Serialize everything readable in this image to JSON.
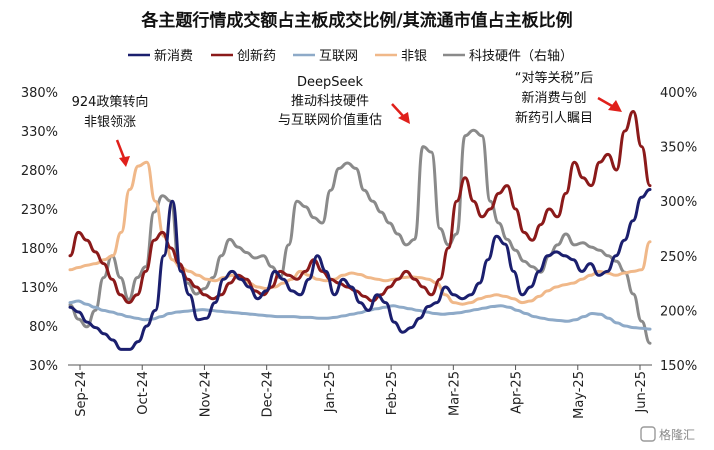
{
  "chart_data": {
    "type": "line",
    "title": "各主题行情成交额占主板成交比例/其流通市值占主板比例",
    "x_labels": [
      "Sep-24",
      "Oct-24",
      "Nov-24",
      "Dec-24",
      "Jan-25",
      "Feb-25",
      "Mar-25",
      "Apr-25",
      "May-25",
      "Jun-25"
    ],
    "y_left": {
      "ticks": [
        "30%",
        "80%",
        "130%",
        "180%",
        "230%",
        "280%",
        "330%",
        "380%"
      ],
      "range": [
        30,
        380
      ]
    },
    "y_right": {
      "ticks": [
        "150%",
        "200%",
        "250%",
        "300%",
        "350%",
        "400%"
      ],
      "range": [
        150,
        400
      ]
    },
    "series": [
      {
        "name": "新消费",
        "color": "#1b1f6e",
        "axis": "left",
        "values": [
          104,
          98,
          85,
          78,
          70,
          62,
          50,
          50,
          60,
          80,
          100,
          170,
          240,
          150,
          120,
          88,
          90,
          110,
          140,
          150,
          140,
          130,
          115,
          125,
          150,
          140,
          125,
          120,
          140,
          170,
          150,
          120,
          140,
          130,
          110,
          100,
          120,
          110,
          85,
          72,
          78,
          90,
          105,
          110,
          130,
          120,
          115,
          120,
          135,
          165,
          195,
          185,
          150,
          120,
          130,
          150,
          170,
          175,
          170,
          165,
          150,
          160,
          145,
          150,
          170,
          190,
          215,
          245,
          255
        ]
      },
      {
        "name": "创新药",
        "color": "#8b1a1a",
        "axis": "left",
        "values": [
          170,
          200,
          190,
          175,
          160,
          140,
          120,
          110,
          120,
          150,
          190,
          200,
          180,
          160,
          140,
          130,
          120,
          115,
          120,
          135,
          145,
          140,
          125,
          120,
          130,
          150,
          145,
          140,
          150,
          165,
          150,
          140,
          135,
          130,
          125,
          118,
          112,
          120,
          130,
          140,
          150,
          140,
          130,
          120,
          140,
          180,
          240,
          270,
          240,
          220,
          230,
          250,
          260,
          230,
          200,
          190,
          210,
          230,
          220,
          250,
          290,
          270,
          260,
          290,
          300,
          280,
          330,
          355,
          310,
          260
        ]
      },
      {
        "name": "互联网",
        "color": "#8eaac8",
        "axis": "left",
        "values": [
          110,
          112,
          108,
          104,
          100,
          98,
          95,
          92,
          90,
          88,
          89,
          92,
          96,
          98,
          99,
          100,
          101,
          100,
          99,
          98,
          97,
          96,
          95,
          94,
          93,
          92,
          92,
          92,
          91,
          91,
          90,
          90,
          91,
          93,
          95,
          97,
          100,
          102,
          104,
          106,
          104,
          102,
          100,
          98,
          96,
          95,
          96,
          97,
          99,
          101,
          103,
          105,
          106,
          104,
          100,
          96,
          92,
          90,
          88,
          87,
          86,
          88,
          92,
          96,
          95,
          90,
          84,
          80,
          78,
          77,
          76
        ]
      },
      {
        "name": "非银",
        "color": "#f0b889",
        "axis": "left",
        "values": [
          152,
          155,
          158,
          160,
          165,
          170,
          200,
          255,
          285,
          290,
          240,
          195,
          165,
          155,
          150,
          145,
          140,
          138,
          142,
          145,
          140,
          135,
          130,
          128,
          130,
          135,
          140,
          150,
          145,
          140,
          138,
          140,
          145,
          148,
          146,
          142,
          140,
          138,
          140,
          142,
          143,
          142,
          140,
          135,
          120,
          110,
          108,
          110,
          115,
          118,
          120,
          118,
          115,
          110,
          112,
          118,
          125,
          130,
          133,
          135,
          140,
          145,
          150,
          148,
          145,
          148,
          150,
          152,
          188
        ]
      },
      {
        "name": "科技硬件（右轴）",
        "color": "#8a8a8a",
        "axis": "right",
        "values": [
          205,
          192,
          185,
          200,
          230,
          250,
          230,
          210,
          230,
          240,
          290,
          305,
          300,
          240,
          225,
          215,
          220,
          230,
          250,
          265,
          258,
          253,
          248,
          250,
          240,
          230,
          260,
          300,
          295,
          285,
          280,
          310,
          330,
          335,
          330,
          310,
          300,
          290,
          280,
          270,
          260,
          265,
          350,
          345,
          275,
          260,
          270,
          360,
          365,
          360,
          300,
          280,
          265,
          255,
          245,
          240,
          235,
          250,
          260,
          270,
          260,
          262,
          258,
          255,
          250,
          245,
          235,
          215,
          190,
          170
        ]
      }
    ]
  },
  "annotations": {
    "oct": [
      "924政策转向",
      "非银领涨"
    ],
    "deepseek": [
      "DeepSeek",
      "推动科技硬件",
      "与互联网价值重估"
    ],
    "tariff": [
      "“对等关税”后",
      "新消费与创",
      "新药引人瞩目"
    ]
  },
  "watermark": "格隆汇"
}
